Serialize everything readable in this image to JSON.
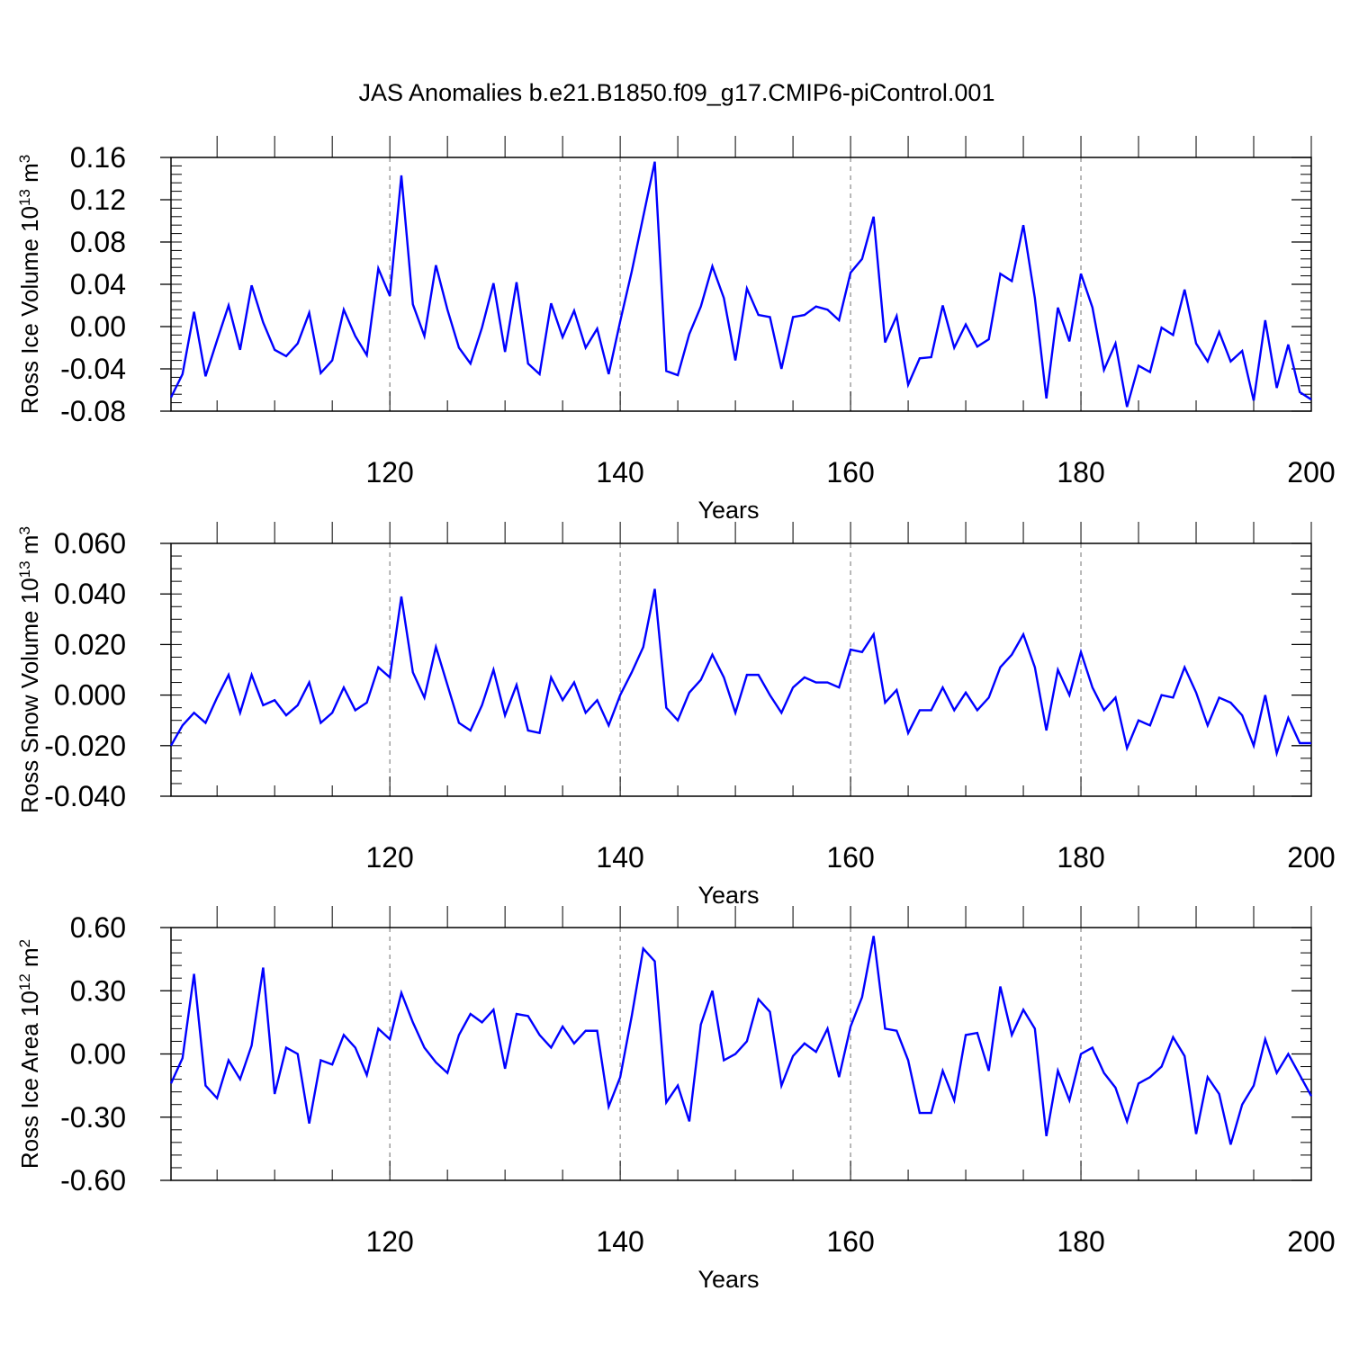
{
  "title": "JAS Anomalies b.e21.B1850.f09_g17.CMIP6-piControl.001",
  "colors": {
    "line": "#0000ff",
    "axis": "#000000",
    "grid": "#888888",
    "background": "#ffffff"
  },
  "chart_data": [
    {
      "type": "line",
      "ylabel": "Ross Ice Volume 10",
      "ylabel_exp": "13",
      "ylabel_unit": " m",
      "ylabel_unit_exp": "3",
      "xlabel": "Years",
      "xlim": [
        101,
        200
      ],
      "ylim": [
        -0.08,
        0.16
      ],
      "xticks": [
        120,
        140,
        160,
        180,
        200
      ],
      "xtick_labels": [
        "120",
        "140",
        "160",
        "180",
        "200"
      ],
      "yticks": [
        -0.08,
        -0.04,
        0.0,
        0.04,
        0.08,
        0.12,
        0.16
      ],
      "ytick_labels": [
        "-0.08",
        "-0.04",
        "0.00",
        "0.04",
        "0.08",
        "0.12",
        "0.16"
      ],
      "y_minor_step": 0.008,
      "x_grid": [
        120,
        140,
        160,
        180
      ],
      "series": [
        {
          "name": "Ross Ice Volume",
          "x_start": 101,
          "values": [
            -0.067,
            -0.045,
            0.014,
            -0.047,
            -0.013,
            0.02,
            -0.022,
            0.039,
            0.004,
            -0.022,
            -0.028,
            -0.016,
            0.013,
            -0.044,
            -0.032,
            0.016,
            -0.009,
            -0.027,
            0.055,
            0.029,
            0.143,
            0.021,
            -0.009,
            0.058,
            0.016,
            -0.02,
            -0.035,
            -0.001,
            0.041,
            -0.024,
            0.042,
            -0.035,
            -0.045,
            0.022,
            -0.01,
            0.015,
            -0.02,
            -0.002,
            -0.045,
            0.005,
            0.052,
            0.104,
            0.156,
            -0.042,
            -0.046,
            -0.007,
            0.019,
            0.057,
            0.027,
            -0.032,
            0.036,
            0.011,
            0.009,
            -0.04,
            0.009,
            0.011,
            0.019,
            0.016,
            0.006,
            0.051,
            0.064,
            0.104,
            -0.015,
            0.01,
            -0.055,
            -0.03,
            -0.029,
            0.02,
            -0.02,
            0.002,
            -0.019,
            -0.012,
            0.05,
            0.043,
            0.096,
            0.027,
            -0.068,
            0.018,
            -0.014,
            0.05,
            0.018,
            -0.041,
            -0.016,
            -0.076,
            -0.037,
            -0.043,
            -0.001,
            -0.008,
            0.035,
            -0.016,
            -0.033,
            -0.005,
            -0.033,
            -0.023,
            -0.07,
            0.006,
            -0.058,
            -0.017,
            -0.062,
            -0.069
          ]
        }
      ]
    },
    {
      "type": "line",
      "ylabel": "Ross Snow Volume 10",
      "ylabel_exp": "13",
      "ylabel_unit": " m",
      "ylabel_unit_exp": "3",
      "xlabel": "Years",
      "xlim": [
        101,
        200
      ],
      "ylim": [
        -0.04,
        0.06
      ],
      "xticks": [
        120,
        140,
        160,
        180,
        200
      ],
      "xtick_labels": [
        "120",
        "140",
        "160",
        "180",
        "200"
      ],
      "yticks": [
        -0.04,
        -0.02,
        0.0,
        0.02,
        0.04,
        0.06
      ],
      "ytick_labels": [
        "-0.040",
        "-0.020",
        "0.000",
        "0.020",
        "0.040",
        "0.060"
      ],
      "y_minor_step": 0.005,
      "x_grid": [
        120,
        140,
        160,
        180
      ],
      "series": [
        {
          "name": "Ross Snow Volume",
          "x_start": 101,
          "values": [
            -0.02,
            -0.012,
            -0.007,
            -0.011,
            -0.001,
            0.008,
            -0.007,
            0.008,
            -0.004,
            -0.002,
            -0.008,
            -0.004,
            0.005,
            -0.011,
            -0.007,
            0.003,
            -0.006,
            -0.003,
            0.011,
            0.007,
            0.039,
            0.009,
            -0.001,
            0.019,
            0.004,
            -0.011,
            -0.014,
            -0.004,
            0.01,
            -0.008,
            0.004,
            -0.014,
            -0.015,
            0.007,
            -0.002,
            0.005,
            -0.007,
            -0.002,
            -0.012,
            0.0,
            0.009,
            0.019,
            0.042,
            -0.005,
            -0.01,
            0.001,
            0.006,
            0.016,
            0.007,
            -0.007,
            0.008,
            0.008,
            0.0,
            -0.007,
            0.003,
            0.007,
            0.005,
            0.005,
            0.003,
            0.018,
            0.017,
            0.024,
            -0.003,
            0.002,
            -0.015,
            -0.006,
            -0.006,
            0.003,
            -0.006,
            0.001,
            -0.006,
            -0.001,
            0.011,
            0.016,
            0.024,
            0.011,
            -0.014,
            0.01,
            0.0,
            0.017,
            0.003,
            -0.006,
            -0.001,
            -0.021,
            -0.01,
            -0.012,
            0.0,
            -0.001,
            0.011,
            0.001,
            -0.012,
            -0.001,
            -0.003,
            -0.008,
            -0.02,
            0.0,
            -0.023,
            -0.009,
            -0.019,
            -0.019
          ]
        }
      ]
    },
    {
      "type": "line",
      "ylabel": "Ross Ice Area 10",
      "ylabel_exp": "12",
      "ylabel_unit": " m",
      "ylabel_unit_exp": "2",
      "xlabel": "Years",
      "xlim": [
        101,
        200
      ],
      "ylim": [
        -0.6,
        0.6
      ],
      "xticks": [
        120,
        140,
        160,
        180,
        200
      ],
      "xtick_labels": [
        "120",
        "140",
        "160",
        "180",
        "200"
      ],
      "yticks": [
        -0.6,
        -0.3,
        0.0,
        0.3,
        0.6
      ],
      "ytick_labels": [
        "-0.60",
        "-0.30",
        "0.00",
        "0.30",
        "0.60"
      ],
      "y_minor_step": 0.06,
      "x_grid": [
        120,
        140,
        160,
        180
      ],
      "series": [
        {
          "name": "Ross Ice Area",
          "x_start": 101,
          "values": [
            -0.14,
            -0.02,
            0.38,
            -0.15,
            -0.21,
            -0.03,
            -0.12,
            0.04,
            0.41,
            -0.19,
            0.03,
            0.0,
            -0.33,
            -0.03,
            -0.05,
            0.09,
            0.03,
            -0.1,
            0.12,
            0.07,
            0.29,
            0.15,
            0.03,
            -0.04,
            -0.09,
            0.09,
            0.19,
            0.15,
            0.21,
            -0.07,
            0.19,
            0.18,
            0.09,
            0.03,
            0.13,
            0.05,
            0.11,
            0.11,
            -0.25,
            -0.11,
            0.18,
            0.5,
            0.44,
            -0.23,
            -0.15,
            -0.32,
            0.14,
            0.3,
            -0.03,
            0.0,
            0.06,
            0.26,
            0.2,
            -0.15,
            -0.01,
            0.05,
            0.01,
            0.12,
            -0.11,
            0.13,
            0.27,
            0.56,
            0.12,
            0.11,
            -0.03,
            -0.28,
            -0.28,
            -0.08,
            -0.22,
            0.09,
            0.1,
            -0.08,
            0.32,
            0.09,
            0.21,
            0.12,
            -0.39,
            -0.08,
            -0.22,
            0.0,
            0.03,
            -0.09,
            -0.16,
            -0.32,
            -0.14,
            -0.11,
            -0.06,
            0.08,
            -0.01,
            -0.38,
            -0.11,
            -0.19,
            -0.43,
            -0.24,
            -0.15,
            0.07,
            -0.09,
            0.0,
            -0.1,
            -0.2
          ]
        }
      ]
    }
  ]
}
